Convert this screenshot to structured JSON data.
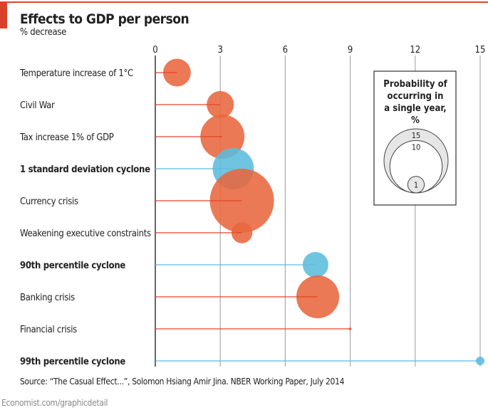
{
  "header": {
    "title": "Effects to GDP per person",
    "subtitle": "% decrease"
  },
  "source": "Source: “The Casual Effect...”, Solomon Hsiang Amir Jina. NBER Working Paper, July 2014",
  "footer": "Economist.com/graphicdetail",
  "colors": {
    "economic": "#e8663d",
    "cyclone": "#5bbcdc",
    "brand_red": "#e3452a"
  },
  "chart_data": {
    "type": "bubble",
    "title": "Effects to GDP per person",
    "xlabel": "% decrease",
    "xlim": [
      0,
      15
    ],
    "xticks": [
      "0",
      "3",
      "6",
      "9",
      "12",
      "15"
    ],
    "grid": true,
    "categories": [
      {
        "label": "Temperature increase of 1°C",
        "value": 1.0,
        "probability": 2.8,
        "group": "economic",
        "bold": false
      },
      {
        "label": "Civil War",
        "value": 3.0,
        "probability": 2.7,
        "group": "economic",
        "bold": false
      },
      {
        "label": "Tax increase 1% of GDP",
        "value": 3.1,
        "probability": 7.1,
        "group": "economic",
        "bold": false
      },
      {
        "label": "1 standard deviation cyclone",
        "value": 3.6,
        "probability": 6.2,
        "group": "cyclone",
        "bold": true
      },
      {
        "label": "Currency crisis",
        "value": 4.0,
        "probability": 15,
        "group": "economic",
        "bold": false
      },
      {
        "label": "Weakening executive constraints",
        "value": 4.0,
        "probability": 1.6,
        "group": "economic",
        "bold": false
      },
      {
        "label": "90th percentile cyclone",
        "value": 7.4,
        "probability": 2.4,
        "group": "cyclone",
        "bold": true
      },
      {
        "label": "Banking crisis",
        "value": 7.5,
        "probability": 6.7,
        "group": "economic",
        "bold": false
      },
      {
        "label": "Financial crisis",
        "value": 9.0,
        "probability": 0.03,
        "group": "economic",
        "bold": false
      },
      {
        "label": "99th percentile cyclone",
        "value": 15.0,
        "probability": 0.27,
        "group": "cyclone",
        "bold": true
      }
    ],
    "legend": {
      "title_lines": [
        "Probability of",
        "occurring in",
        "a single year,",
        "%"
      ],
      "sizes": [
        {
          "label": "15",
          "value": 15
        },
        {
          "label": "10",
          "value": 10
        },
        {
          "label": "1",
          "value": 1
        }
      ],
      "placement": "right"
    }
  }
}
